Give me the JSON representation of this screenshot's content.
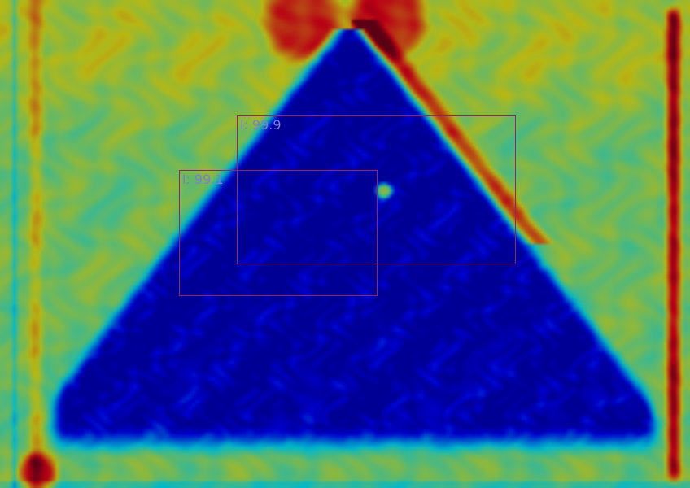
{
  "image": {
    "description_kind": "ultrasound-heatmap-overlay",
    "colormap": "jet",
    "colors": {
      "background_mid": "#0f8a94",
      "cone_dark": "#08084e",
      "hot": "#8b0000",
      "box_stroke": "#8b2a66",
      "label_text": "#7d7fcf"
    }
  },
  "detections": [
    {
      "label": "l: 99.9",
      "class": "l",
      "score": 99.9
    },
    {
      "label": "l: 99.1",
      "class": "l",
      "score": 99.1
    }
  ]
}
